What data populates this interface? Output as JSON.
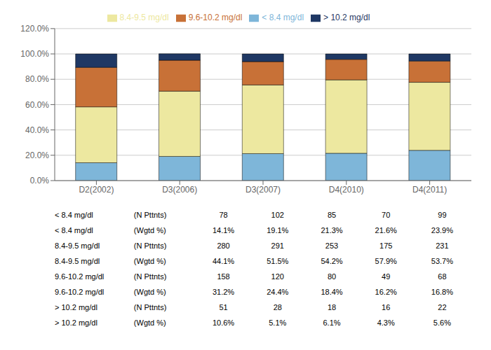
{
  "chart_data": {
    "type": "bar",
    "stacked": true,
    "grid": true,
    "legend": "top",
    "categories": [
      "D2(2002)",
      "D3(2006)",
      "D3(2007)",
      "D4(2010)",
      "D4(2011)"
    ],
    "series": [
      {
        "name": "< 8.4 mg/dl",
        "color": "#7EB6D9",
        "values": [
          14.1,
          19.1,
          21.3,
          21.6,
          23.9
        ]
      },
      {
        "name": "8.4-9.5 mg/dl",
        "color": "#EDE8A0",
        "values": [
          44.1,
          51.5,
          54.2,
          57.9,
          53.7
        ]
      },
      {
        "name": "9.6-10.2 mg/dl",
        "color": "#C87137",
        "values": [
          31.2,
          24.4,
          18.4,
          16.2,
          16.8
        ]
      },
      {
        "name": "> 10.2 mg/dl",
        "color": "#1F3864",
        "values": [
          10.6,
          5.1,
          6.1,
          4.3,
          5.6
        ]
      }
    ],
    "ylim": [
      0,
      120
    ],
    "yticks": [
      {
        "value": 0,
        "label": "0.0%"
      },
      {
        "value": 20,
        "label": "20.0%"
      },
      {
        "value": 40,
        "label": "40.0%"
      },
      {
        "value": 60,
        "label": "60.0%"
      },
      {
        "value": 80,
        "label": "80.0%"
      },
      {
        "value": 100,
        "label": "100.0%"
      },
      {
        "value": 120,
        "label": "120.0%"
      }
    ],
    "table": [
      [
        "< 8.4 mg/dl",
        "(N Pttnts)",
        "78",
        "102",
        "85",
        "70",
        "99"
      ],
      [
        "< 8.4 mg/dl",
        "(Wgtd %)",
        "14.1%",
        "19.1%",
        "21.3%",
        "21.6%",
        "23.9%"
      ],
      [
        "8.4-9.5 mg/dl",
        "(N Pttnts)",
        "280",
        "291",
        "253",
        "175",
        "231"
      ],
      [
        "8.4-9.5 mg/dl",
        "(Wgtd %)",
        "44.1%",
        "51.5%",
        "54.2%",
        "57.9%",
        "53.7%"
      ],
      [
        "9.6-10.2 mg/dl",
        "(N Pttnts)",
        "158",
        "120",
        "80",
        "49",
        "68"
      ],
      [
        "9.6-10.2 mg/dl",
        "(Wgtd %)",
        "31.2%",
        "24.4%",
        "18.4%",
        "16.2%",
        "16.8%"
      ],
      [
        "> 10.2 mg/dl",
        "(N Pttnts)",
        "51",
        "28",
        "18",
        "16",
        "22"
      ],
      [
        "> 10.2 mg/dl",
        "(Wgtd %)",
        "10.6%",
        "5.1%",
        "6.1%",
        "4.3%",
        "5.6%"
      ]
    ]
  }
}
